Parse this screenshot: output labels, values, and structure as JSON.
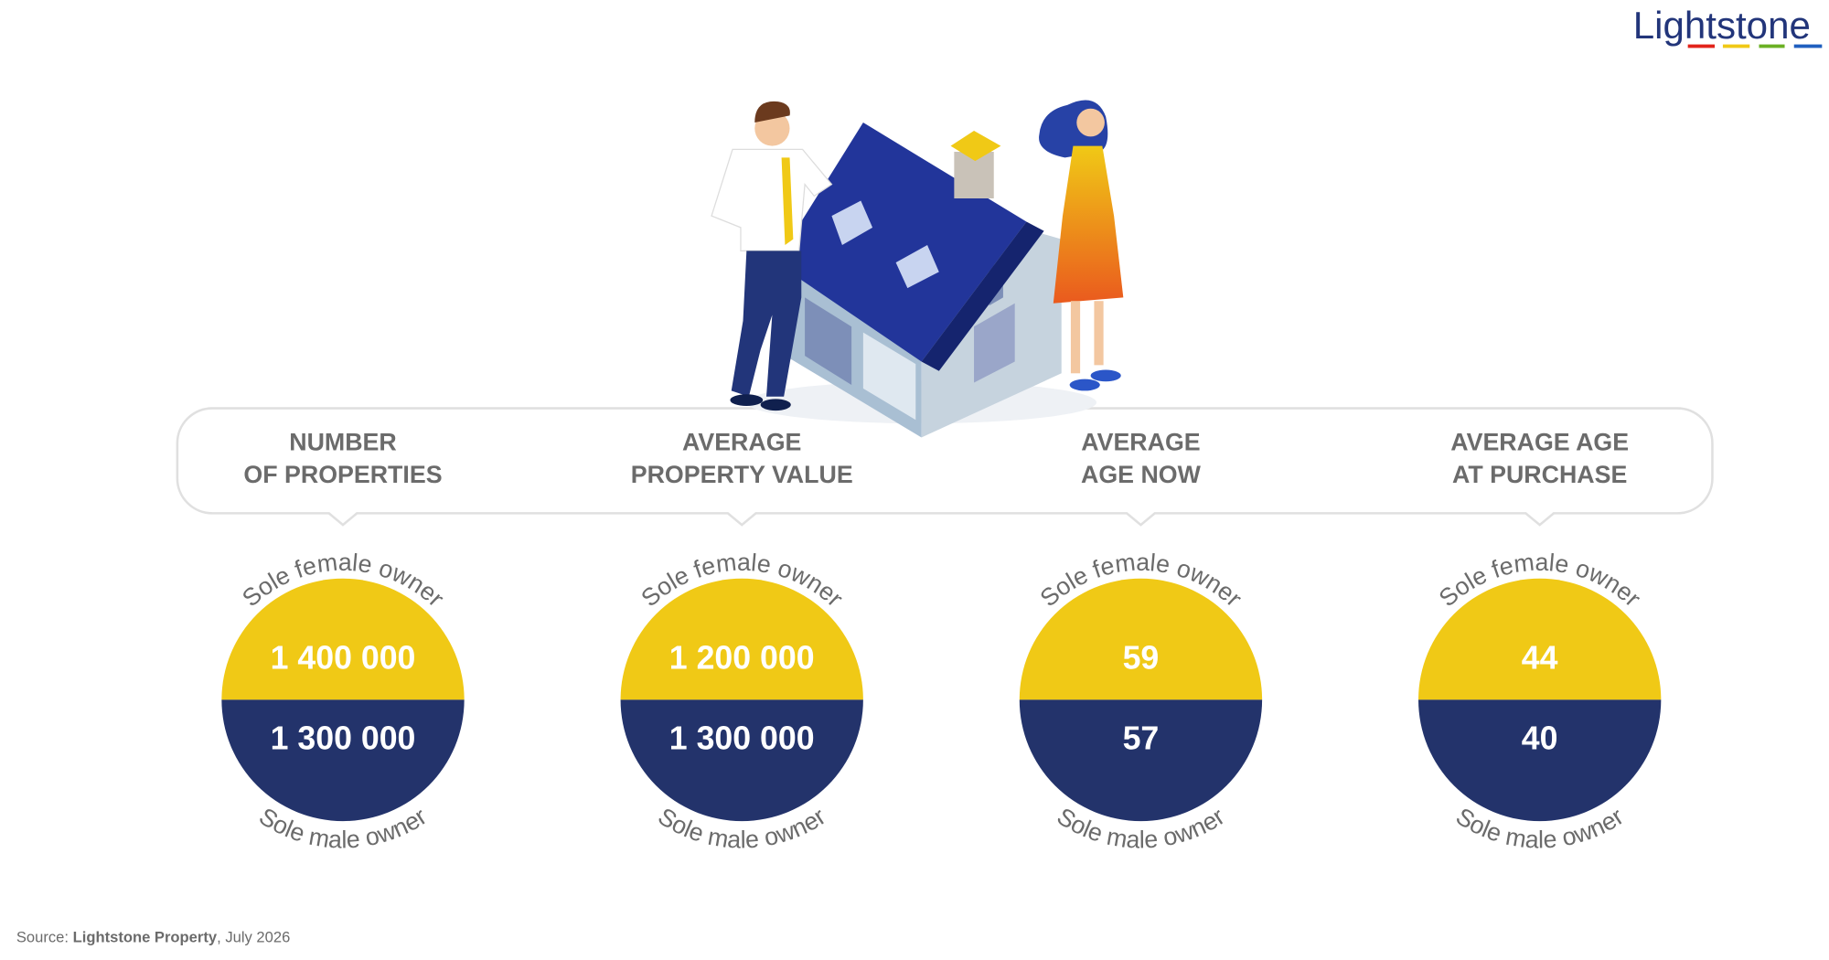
{
  "logo": "Lightstone",
  "columns": [
    {
      "title": [
        "NUMBER",
        "OF PROPERTIES"
      ],
      "female_label": "Sole female owner",
      "female_value": "1 400 000",
      "male_value": "1 300 000",
      "male_label": "Sole male owner"
    },
    {
      "title": [
        "AVERAGE",
        "PROPERTY VALUE"
      ],
      "female_label": "Sole female owner",
      "female_value": "1 200 000",
      "male_value": "1 300 000",
      "male_label": "Sole male owner"
    },
    {
      "title": [
        "AVERAGE",
        "AGE NOW"
      ],
      "female_label": "Sole female owner",
      "female_value": "59",
      "male_value": "57",
      "male_label": "Sole male owner"
    },
    {
      "title": [
        "AVERAGE AGE",
        "AT PURCHASE"
      ],
      "female_label": "Sole female owner",
      "female_value": "44",
      "male_value": "40",
      "male_label": "Sole male owner"
    }
  ],
  "source": {
    "prefix": "Source: ",
    "publisher": "Lightstone Property",
    "date": ", July 2026"
  }
}
